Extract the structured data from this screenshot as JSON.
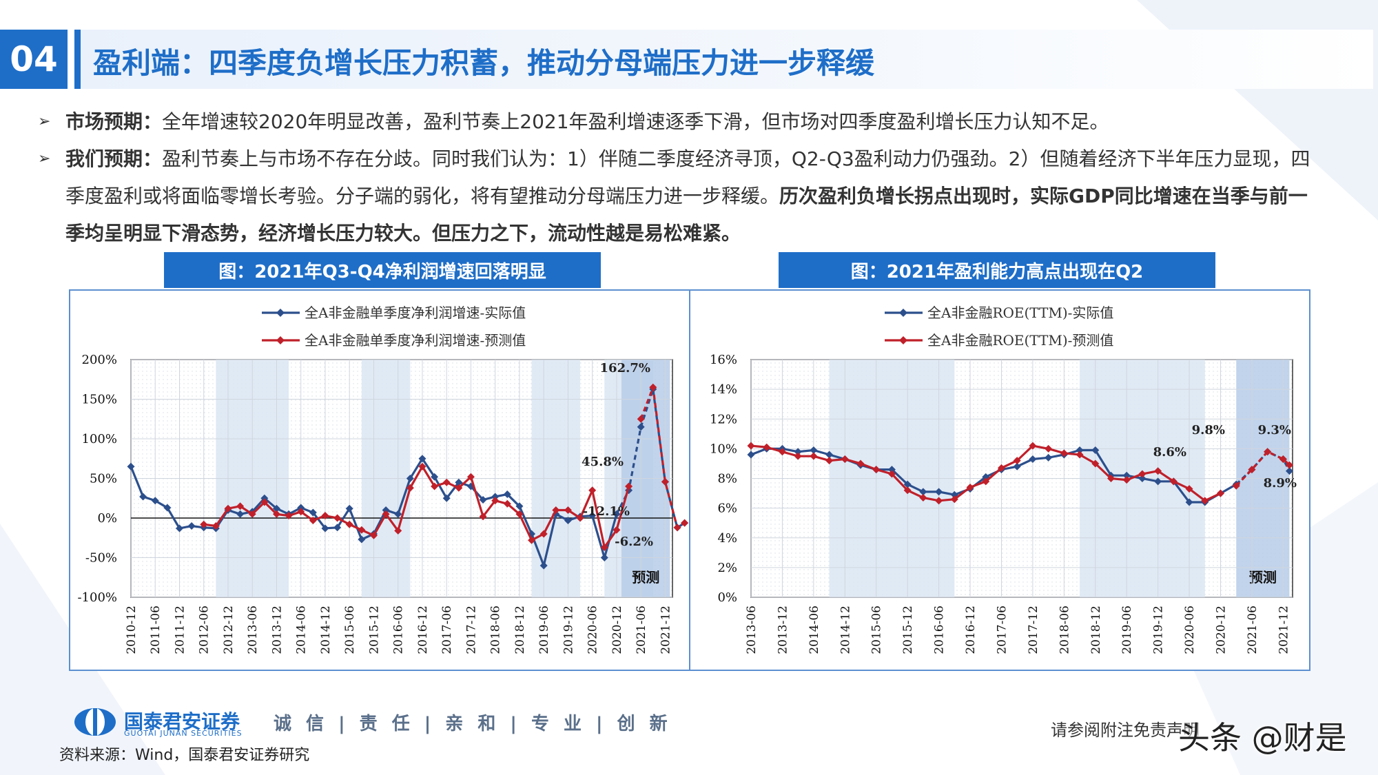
{
  "header": {
    "section_number": "04",
    "title": "盈利端：四季度负增长压力积蓄，推动分母端压力进一步释缓"
  },
  "bullets": [
    {
      "label": "市场预期：",
      "text": "全年增速较2020年明显改善，盈利节奏上2021年盈利增速逐季下滑，但市场对四季度盈利增长压力认知不足。"
    },
    {
      "label": "我们预期：",
      "text": "盈利节奏上与市场不存在分歧。同时我们认为：1）伴随二季度经济寻顶，Q2-Q3盈利动力仍强劲。2）但随着经济下半年压力显现，四季度盈利或将面临零增长考验。分子端的弱化，将有望推动分母端压力进一步释缓。",
      "bold_text": "历次盈利负增长拐点出现时，实际GDP同比增速在当季与前一季均呈明显下滑态势，经济增长压力较大。但压力之下，流动性越是易松难紧。"
    }
  ],
  "charts": {
    "left_caption": "图：2021年Q3-Q4净利润增速回落明显",
    "right_caption": "图：2021年盈利能力高点出现在Q2"
  },
  "chart_data": [
    {
      "type": "line",
      "title": "图：2021年Q3-Q4净利润增速回落明显",
      "ylim": [
        -100,
        200
      ],
      "y_ticks": [
        "200%",
        "150%",
        "100%",
        "50%",
        "0%",
        "-50%",
        "-100%"
      ],
      "x_ticks": [
        "2010-12",
        "2011-06",
        "2011-12",
        "2012-06",
        "2012-12",
        "2013-06",
        "2013-12",
        "2014-06",
        "2014-12",
        "2015-06",
        "2015-12",
        "2016-06",
        "2016-12",
        "2017-06",
        "2017-12",
        "2018-06",
        "2018-12",
        "2019-06",
        "2019-12",
        "2020-06",
        "2020-12",
        "2021-06",
        "2021-12"
      ],
      "shaded_ranges": [
        [
          3.5,
          6.5
        ],
        [
          9.5,
          11.5
        ],
        [
          16.5,
          18.5
        ],
        [
          19.5,
          21.5
        ]
      ],
      "forecast_range": [
        20.2,
        22.2
      ],
      "forecast_label": "预测",
      "grid": true,
      "series": [
        {
          "name": "全A非金融单季度净利润增速-实际值",
          "color": "#2c4f8c",
          "dashed_from": 20.0,
          "points": [
            [
              0,
              65
            ],
            [
              0.5,
              27
            ],
            [
              1,
              22
            ],
            [
              1.5,
              13
            ],
            [
              2,
              -13
            ],
            [
              2.5,
              -10
            ],
            [
              3,
              -12
            ],
            [
              3.5,
              -13
            ],
            [
              4,
              10
            ],
            [
              4.5,
              5
            ],
            [
              5,
              8
            ],
            [
              5.5,
              25
            ],
            [
              6,
              12
            ],
            [
              6.5,
              5
            ],
            [
              7,
              13
            ],
            [
              7.5,
              7
            ],
            [
              8,
              -13
            ],
            [
              8.5,
              -12
            ],
            [
              9,
              12
            ],
            [
              9.5,
              -27
            ],
            [
              10,
              -20
            ],
            [
              10.5,
              10
            ],
            [
              11,
              5
            ],
            [
              11.5,
              50
            ],
            [
              12,
              75
            ],
            [
              12.5,
              52
            ],
            [
              13,
              25
            ],
            [
              13.5,
              45
            ],
            [
              14,
              40
            ],
            [
              14.5,
              23
            ],
            [
              15,
              27
            ],
            [
              15.5,
              30
            ],
            [
              16,
              15
            ],
            [
              16.5,
              -20
            ],
            [
              17,
              -60
            ],
            [
              17.5,
              5
            ],
            [
              18,
              -3
            ],
            [
              18.5,
              2
            ],
            [
              19,
              3
            ],
            [
              19.5,
              -50
            ],
            [
              20,
              5
            ],
            [
              20.5,
              35
            ],
            [
              21,
              115
            ],
            [
              21.5,
              162.7
            ],
            [
              22,
              45.8
            ],
            [
              22.5,
              -12.1
            ],
            [
              22.8,
              -6.2
            ]
          ]
        },
        {
          "name": "全A非金融单季度净利润增速-预测值",
          "color": "#c0202a",
          "dashed_from": 20.8,
          "points": [
            [
              3,
              -8
            ],
            [
              3.5,
              -10
            ],
            [
              4,
              12
            ],
            [
              4.5,
              15
            ],
            [
              5,
              5
            ],
            [
              5.5,
              20
            ],
            [
              6,
              5
            ],
            [
              6.5,
              3
            ],
            [
              7,
              8
            ],
            [
              7.5,
              -3
            ],
            [
              8,
              3
            ],
            [
              8.5,
              0
            ],
            [
              9,
              -8
            ],
            [
              9.5,
              -15
            ],
            [
              10,
              -22
            ],
            [
              10.5,
              5
            ],
            [
              11,
              -16
            ],
            [
              11.5,
              38
            ],
            [
              12,
              65
            ],
            [
              12.5,
              40
            ],
            [
              13,
              45
            ],
            [
              13.5,
              38
            ],
            [
              14,
              52
            ],
            [
              14.5,
              2
            ],
            [
              15,
              22
            ],
            [
              15.5,
              18
            ],
            [
              16,
              5
            ],
            [
              16.5,
              -28
            ],
            [
              17,
              -20
            ],
            [
              17.5,
              10
            ],
            [
              18,
              10
            ],
            [
              18.5,
              0
            ],
            [
              19,
              35
            ],
            [
              19.5,
              -37
            ],
            [
              20,
              -15
            ],
            [
              20.5,
              40
            ],
            [
              21,
              125
            ],
            [
              21.5,
              165
            ],
            [
              22,
              45.8
            ],
            [
              22.5,
              -12
            ],
            [
              22.8,
              -6.2
            ]
          ]
        }
      ],
      "annotations": [
        "162.7%",
        "45.8%",
        "-12.1%",
        "-6.2%"
      ]
    },
    {
      "type": "line",
      "title": "图：2021年盈利能力高点出现在Q2",
      "ylim": [
        0,
        16
      ],
      "y_ticks": [
        "16%",
        "14%",
        "12%",
        "10%",
        "8%",
        "6%",
        "4%",
        "2%",
        "0%"
      ],
      "x_ticks": [
        "2013-06",
        "2013-12",
        "2014-06",
        "2014-12",
        "2015-06",
        "2015-12",
        "2016-06",
        "2016-12",
        "2017-06",
        "2017-12",
        "2018-06",
        "2018-12",
        "2019-06",
        "2019-12",
        "2020-06",
        "2020-12",
        "2021-06",
        "2021-12"
      ],
      "shaded_ranges": [
        [
          2.5,
          6.5
        ],
        [
          10.5,
          14.5
        ]
      ],
      "forecast_range": [
        15.5,
        17.2
      ],
      "forecast_label": "预测",
      "grid": true,
      "series": [
        {
          "name": "全A非金融ROE(TTM)-实际值",
          "color": "#2c4f8c",
          "dashed_from": 15.5,
          "points": [
            [
              0,
              9.6
            ],
            [
              0.5,
              10.0
            ],
            [
              1,
              10.0
            ],
            [
              1.5,
              9.8
            ],
            [
              2,
              9.9
            ],
            [
              2.5,
              9.6
            ],
            [
              3,
              9.3
            ],
            [
              3.5,
              8.9
            ],
            [
              4,
              8.6
            ],
            [
              4.5,
              8.6
            ],
            [
              5,
              7.6
            ],
            [
              5.5,
              7.1
            ],
            [
              6,
              7.1
            ],
            [
              6.5,
              6.9
            ],
            [
              7,
              7.3
            ],
            [
              7.5,
              8.1
            ],
            [
              8,
              8.6
            ],
            [
              8.5,
              8.8
            ],
            [
              9,
              9.3
            ],
            [
              9.5,
              9.4
            ],
            [
              10,
              9.6
            ],
            [
              10.5,
              9.9
            ],
            [
              11,
              9.9
            ],
            [
              11.5,
              8.2
            ],
            [
              12,
              8.2
            ],
            [
              12.5,
              8.0
            ],
            [
              13,
              7.8
            ],
            [
              13.5,
              7.8
            ],
            [
              14,
              6.4
            ],
            [
              14.5,
              6.4
            ],
            [
              15,
              7.0
            ],
            [
              15.5,
              7.6
            ],
            [
              16,
              8.6
            ],
            [
              16.5,
              9.8
            ],
            [
              17,
              9.3
            ],
            [
              17.2,
              8.5
            ]
          ]
        },
        {
          "name": "全A非金融ROE(TTM)-预测值",
          "color": "#c0202a",
          "dashed_from": 15.2,
          "points": [
            [
              0,
              10.2
            ],
            [
              0.5,
              10.1
            ],
            [
              1,
              9.8
            ],
            [
              1.5,
              9.5
            ],
            [
              2,
              9.5
            ],
            [
              2.5,
              9.2
            ],
            [
              3,
              9.3
            ],
            [
              3.5,
              9.0
            ],
            [
              4,
              8.6
            ],
            [
              4.5,
              8.3
            ],
            [
              5,
              7.2
            ],
            [
              5.5,
              6.7
            ],
            [
              6,
              6.5
            ],
            [
              6.5,
              6.6
            ],
            [
              7,
              7.4
            ],
            [
              7.5,
              7.8
            ],
            [
              8,
              8.7
            ],
            [
              8.5,
              9.2
            ],
            [
              9,
              10.2
            ],
            [
              9.5,
              10.0
            ],
            [
              10,
              9.7
            ],
            [
              10.5,
              9.6
            ],
            [
              11,
              9.0
            ],
            [
              11.5,
              8.0
            ],
            [
              12,
              7.9
            ],
            [
              12.5,
              8.3
            ],
            [
              13,
              8.5
            ],
            [
              13.5,
              7.8
            ],
            [
              14,
              7.3
            ],
            [
              14.5,
              6.5
            ],
            [
              15,
              7.0
            ],
            [
              15.5,
              7.5
            ],
            [
              16,
              8.6
            ],
            [
              16.5,
              9.8
            ],
            [
              17,
              9.3
            ],
            [
              17.2,
              8.9
            ]
          ]
        }
      ],
      "annotations": [
        "9.8%",
        "9.3%",
        "8.6%",
        "8.9%"
      ]
    }
  ],
  "footer": {
    "company": "国泰君安证券",
    "company_en": "GUOTAI JUNAN SECURITIES",
    "slogan": "诚 信 | 责 任 | 亲 和 | 专 业 | 创 新",
    "source": "资料来源：Wind，国泰君安证券研究",
    "disclaimer": "请参阅附注免责声明",
    "watermark": "头条 @财是"
  }
}
